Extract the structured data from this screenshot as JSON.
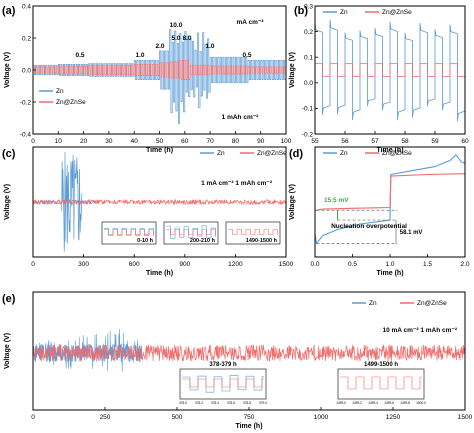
{
  "colors": {
    "zn": "#5B9BD5",
    "znse": "#F26B6B",
    "axis": "#000000",
    "guide": "#6e6e6e",
    "highlight": "#3CB043"
  },
  "chart_data": [
    {
      "id": "a",
      "panel_label": "(a)",
      "type": "line",
      "xlabel": "Time (h)",
      "ylabel": "Voltage (V)",
      "xlim": [
        0,
        100
      ],
      "ylim": [
        -0.4,
        0.4
      ],
      "xticks": [
        "0",
        "10",
        "20",
        "30",
        "40",
        "50",
        "60",
        "70",
        "80",
        "90",
        "100"
      ],
      "yticks": [
        "-0.4",
        "-0.2",
        "0.0",
        "0.2",
        "0.4"
      ],
      "legend": {
        "position": "left",
        "entries": [
          "Zn",
          "Zn@ZnSe"
        ]
      },
      "annotations": [
        "mA cm⁻²",
        "0.5",
        "1.0",
        "2.0",
        "5.0",
        "8.0",
        "10.0",
        "1.0",
        "0.5",
        "1 mAh cm⁻²"
      ],
      "series": [
        {
          "name": "Zn",
          "segments": [
            {
              "t": [
                0,
                10
              ],
              "amp": 0.03
            },
            {
              "t": [
                10,
                22
              ],
              "amp": 0.035
            },
            {
              "t": [
                22,
                40
              ],
              "amp": 0.04
            },
            {
              "t": [
                40,
                50
              ],
              "amp": 0.06
            },
            {
              "t": [
                50,
                54
              ],
              "amp": 0.12
            },
            {
              "t": [
                54,
                58
              ],
              "amp": 0.3
            },
            {
              "t": [
                58,
                62
              ],
              "amp": 0.25
            },
            {
              "t": [
                62,
                70
              ],
              "amp": 0.2
            },
            {
              "t": [
                70,
                85
              ],
              "amp": 0.08
            },
            {
              "t": [
                85,
                100
              ],
              "amp": 0.06
            }
          ]
        },
        {
          "name": "Zn@ZnSe",
          "segments": [
            {
              "t": [
                0,
                10
              ],
              "amp": 0.02
            },
            {
              "t": [
                10,
                22
              ],
              "amp": 0.025
            },
            {
              "t": [
                22,
                40
              ],
              "amp": 0.03
            },
            {
              "t": [
                40,
                50
              ],
              "amp": 0.035
            },
            {
              "t": [
                50,
                54
              ],
              "amp": 0.045
            },
            {
              "t": [
                54,
                58
              ],
              "amp": 0.05
            },
            {
              "t": [
                58,
                62
              ],
              "amp": 0.06
            },
            {
              "t": [
                62,
                70
              ],
              "amp": 0.03
            },
            {
              "t": [
                70,
                85
              ],
              "amp": 0.025
            },
            {
              "t": [
                85,
                100
              ],
              "amp": 0.02
            }
          ]
        }
      ]
    },
    {
      "id": "b",
      "panel_label": "(b)",
      "type": "line",
      "xlabel": "Time (h)",
      "ylabel": "Voltage (V)",
      "xlim": [
        55,
        60
      ],
      "ylim": [
        -0.3,
        0.3
      ],
      "xticks": [
        "55",
        "56",
        "57",
        "58",
        "59",
        "60"
      ],
      "yticks": [
        "-0.2",
        "-0.1",
        "0.0",
        "0.1",
        "0.2",
        "0.3"
      ],
      "legend": {
        "position": "top",
        "entries": [
          "Zn",
          "Zn@ZnSe"
        ]
      },
      "series": [
        {
          "name": "Zn",
          "period_h": 0.5,
          "high": 0.22,
          "low": -0.22
        },
        {
          "name": "Zn@ZnSe",
          "period_h": 0.5,
          "high": 0.03,
          "low": -0.03
        }
      ]
    },
    {
      "id": "c",
      "panel_label": "(c)",
      "type": "line",
      "xlabel": "Time (h)",
      "ylabel": "Voltage (V)",
      "xlim": [
        0,
        1500
      ],
      "ylim": [
        -0.4,
        0.4
      ],
      "xticks": [
        "0",
        "300",
        "600",
        "900",
        "1200",
        "1500"
      ],
      "legend": {
        "position": "top-right",
        "entries": [
          "Zn",
          "Zn@ZnSe"
        ]
      },
      "annotations": [
        "1 mA cm⁻²  1 mAh cm⁻²"
      ],
      "insets": [
        {
          "label": "0-10 h",
          "range": [
            0,
            10
          ]
        },
        {
          "label": "200-210 h",
          "range": [
            200,
            210
          ]
        },
        {
          "label": "1490-1500 h",
          "range": [
            1490,
            1500
          ]
        }
      ],
      "series": [
        {
          "name": "Zn",
          "short_circuit_h": 380,
          "amp_normal": 0.035,
          "spikes_h": [
            180,
            260
          ]
        },
        {
          "name": "Zn@ZnSe",
          "amp": 0.025
        }
      ]
    },
    {
      "id": "d",
      "panel_label": "(d)",
      "type": "line",
      "xlabel": "Time (h)",
      "ylabel": "Voltage (V)",
      "xlim": [
        0,
        2.0
      ],
      "xticks": [
        "0.0",
        "0.5",
        "1.0",
        "1.5",
        "2.0"
      ],
      "legend": {
        "position": "top",
        "entries": [
          "Zn",
          "Zn@ZnSe"
        ]
      },
      "annotations": [
        "15.5 mV",
        "Nucleation overpotential",
        "58.1 mV"
      ],
      "series": [
        {
          "name": "Zn",
          "x": [
            0.0,
            0.02,
            0.1,
            0.3,
            0.6,
            1.0,
            1.01,
            1.3,
            1.6,
            1.8,
            1.88,
            1.95,
            2.0
          ],
          "y": [
            -0.045,
            -0.058,
            -0.048,
            -0.04,
            -0.033,
            -0.028,
            0.03,
            0.035,
            0.04,
            0.048,
            0.055,
            0.046,
            0.044
          ]
        },
        {
          "name": "Zn@ZnSe",
          "x": [
            0.0,
            0.02,
            0.1,
            0.5,
            1.0,
            1.01,
            1.5,
            2.0
          ],
          "y": [
            -0.015,
            -0.0155,
            -0.014,
            -0.013,
            -0.012,
            0.028,
            0.03,
            0.031
          ]
        }
      ]
    },
    {
      "id": "e",
      "panel_label": "(e)",
      "type": "line",
      "xlabel": "Time (h)",
      "ylabel": "Voltage (V)",
      "xlim": [
        0,
        1500
      ],
      "xticks": [
        "0",
        "250",
        "500",
        "750",
        "1000",
        "1250",
        "1500"
      ],
      "legend": {
        "position": "top-right",
        "entries": [
          "Zn",
          "Zn@ZnSe"
        ]
      },
      "annotations": [
        "10 mA cm⁻²   1 mAh cm⁻²"
      ],
      "insets": [
        {
          "label": "378-379 h",
          "range": [
            378,
            379
          ],
          "ticks": [
            "378.0",
            "378.2",
            "378.4",
            "378.6",
            "378.8",
            "379.0"
          ]
        },
        {
          "label": "1499-1500 h",
          "range": [
            1499,
            1500
          ],
          "ticks": [
            "1499.0",
            "1499.2",
            "1499.4",
            "1499.6",
            "1499.8",
            "1500.0"
          ]
        }
      ],
      "series": [
        {
          "name": "Zn",
          "short_circuit_h": 378
        },
        {
          "name": "Zn@ZnSe",
          "amp": 0.05
        }
      ]
    }
  ]
}
